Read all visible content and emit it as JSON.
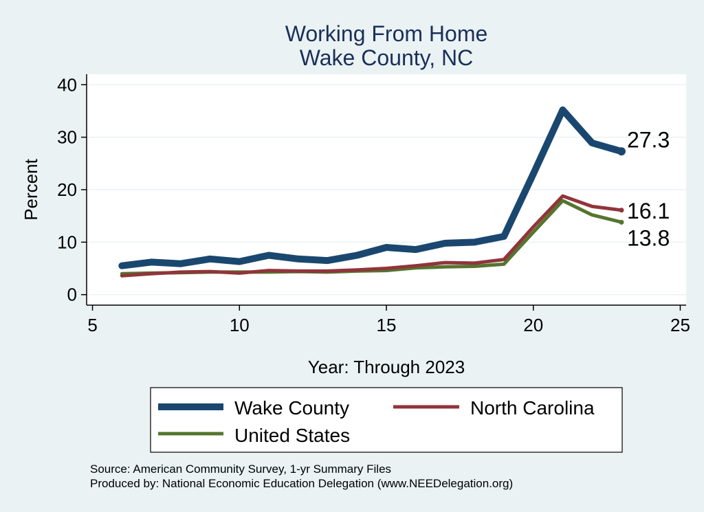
{
  "chart_data": {
    "type": "line",
    "title": [
      "Working From Home",
      "Wake County, NC"
    ],
    "xlabel": "Year: Through 2023",
    "ylabel": "Percent",
    "xlim": [
      4.8,
      25.2
    ],
    "ylim": [
      -2,
      42
    ],
    "xticks": [
      5,
      10,
      15,
      20,
      25
    ],
    "yticks": [
      0,
      10,
      20,
      30,
      40
    ],
    "grid": true,
    "series": [
      {
        "name": "Wake County",
        "color": "#1a476f",
        "x": [
          6,
          7,
          8,
          9,
          10,
          11,
          12,
          13,
          14,
          15,
          16,
          17,
          18,
          19,
          20,
          21,
          22,
          23
        ],
        "values": [
          5.5,
          6.2,
          5.9,
          6.8,
          6.3,
          7.5,
          6.8,
          6.5,
          7.5,
          9.0,
          8.6,
          9.8,
          10.0,
          11.1,
          23.0,
          35.2,
          28.9,
          27.3
        ],
        "end_label": "27.3"
      },
      {
        "name": "North Carolina",
        "color": "#90353b",
        "x": [
          6,
          7,
          8,
          9,
          10,
          11,
          12,
          13,
          14,
          15,
          16,
          17,
          18,
          19,
          20,
          21,
          22,
          23
        ],
        "values": [
          3.6,
          4.0,
          4.3,
          4.4,
          4.1,
          4.6,
          4.5,
          4.5,
          4.7,
          5.0,
          5.5,
          6.1,
          6.0,
          6.7,
          12.9,
          18.8,
          16.8,
          16.1
        ],
        "end_label": "16.1"
      },
      {
        "name": "United States",
        "color": "#55752f",
        "x": [
          6,
          7,
          8,
          9,
          10,
          11,
          12,
          13,
          14,
          15,
          16,
          17,
          18,
          19,
          20,
          21,
          22,
          23
        ],
        "values": [
          4.0,
          4.1,
          4.2,
          4.3,
          4.3,
          4.3,
          4.4,
          4.3,
          4.5,
          4.6,
          5.1,
          5.3,
          5.4,
          5.8,
          11.9,
          17.9,
          15.2,
          13.8
        ],
        "end_label": "13.8"
      }
    ],
    "legend": {
      "position": "bottom"
    }
  },
  "notes": [
    "Source: American Community Survey, 1-yr Summary Files",
    "Produced by: National Economic Education Delegation (www.NEEDelegation.org)"
  ]
}
